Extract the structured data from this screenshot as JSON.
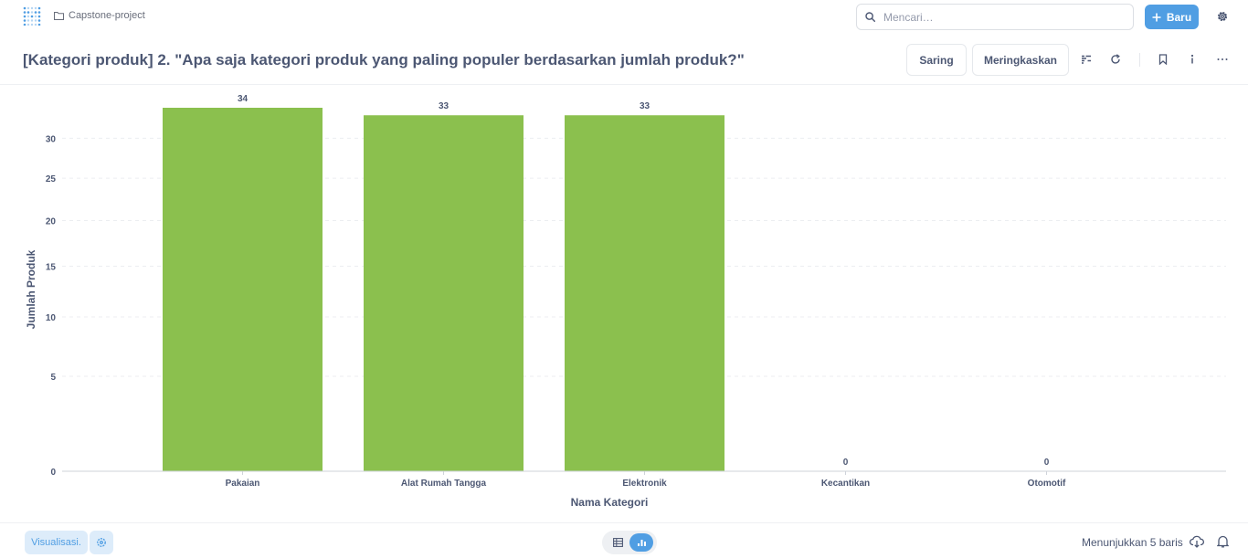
{
  "nav": {
    "breadcrumb": "Capstone-project",
    "search_placeholder": "Mencari…",
    "new_label": "Baru"
  },
  "header": {
    "title": "[Kategori produk] 2. \"Apa saja kategori produk yang paling populer berdasarkan jumlah produk?\"",
    "filter_label": "Saring",
    "summarize_label": "Meringkaskan"
  },
  "footer": {
    "visualization_label": "Visualisasi.",
    "row_count": "Menunjukkan 5 baris"
  },
  "colors": {
    "bar": "#8bc04e",
    "accent": "#509ee3"
  },
  "chart_data": {
    "type": "bar",
    "categories": [
      "Pakaian",
      "Alat Rumah Tangga",
      "Elektronik",
      "Kecantikan",
      "Otomotif"
    ],
    "values": [
      34,
      33,
      33,
      0,
      0
    ],
    "data_labels": [
      "34",
      "33",
      "33",
      "0",
      "0"
    ],
    "xlabel": "Nama Kategori",
    "ylabel": "Jumlah Produk",
    "y_ticks": [
      0,
      5,
      10,
      15,
      20,
      25,
      30
    ],
    "y_tick_labels": [
      "0",
      "5",
      "10",
      "15",
      "20",
      "25",
      "30"
    ],
    "ylim": [
      0,
      34
    ],
    "y_scale": "pow",
    "grid": true
  }
}
